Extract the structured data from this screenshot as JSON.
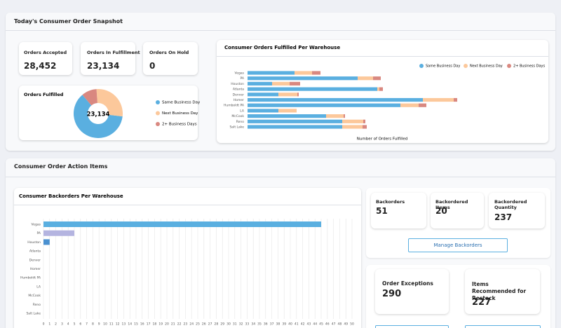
{
  "snapshot_title": "Today's Consumer Order Snapshot",
  "order_kpis": [
    {
      "label": "Orders Accepted",
      "value": "28,452"
    },
    {
      "label": "Orders In Fulfillment",
      "value": "23,134"
    },
    {
      "label": "Orders On Hold",
      "value": "0"
    }
  ],
  "chart_data": [
    {
      "type": "pie",
      "title": "Orders Fulfilled",
      "center_label": "23,134",
      "categories": [
        "Same Business Day",
        "Next Business Day",
        "2+ Business Days"
      ],
      "values": [
        62,
        28,
        10
      ],
      "colors": [
        "#5aafe0",
        "#fcc89b",
        "#d98880"
      ]
    },
    {
      "type": "stacked-bar",
      "title": "Consumer Orders Fulfilled Per Warehouse",
      "xlabel": "Number of Orders Fulfilled",
      "categories": [
        "Vegas",
        "PA",
        "Houston",
        "Atlanta",
        "Denver",
        "Homer",
        "Humboldt PA",
        "LA",
        "McCook",
        "Reno",
        "Salt Lake"
      ],
      "series": [
        {
          "name": "Same Business Day",
          "color": "#5aafe0",
          "values": [
            67,
            157,
            35,
            185,
            44,
            250,
            218,
            44,
            112,
            135,
            135
          ]
        },
        {
          "name": "Next Business Day",
          "color": "#fcc89b",
          "values": [
            25,
            22,
            25,
            3,
            27,
            44,
            26,
            26,
            25,
            30,
            29
          ]
        },
        {
          "name": "2+ Business Days",
          "color": "#d98880",
          "values": [
            12,
            11,
            15,
            5,
            2,
            5,
            11,
            0,
            2,
            3,
            6
          ]
        }
      ],
      "xlim": [
        0,
        310
      ],
      "legend": "top-right"
    },
    {
      "type": "bar",
      "title": "Consumer Backorders Per Warehouse",
      "categories": [
        "Vegas",
        "PA",
        "Houston",
        "Atlanta",
        "Denver",
        "Homer",
        "Humboldt PA",
        "LA",
        "McCook",
        "Reno",
        "Salt Lake"
      ],
      "values": [
        45,
        5,
        1,
        0,
        0,
        0,
        0,
        0,
        0,
        0,
        0
      ],
      "colors": [
        "#5aafe0",
        "#b4b4e0",
        "#4a90d0",
        "#5aafe0",
        "#5aafe0",
        "#5aafe0",
        "#5aafe0",
        "#5aafe0",
        "#5aafe0",
        "#5aafe0",
        "#5aafe0"
      ],
      "xlim": [
        0,
        50
      ],
      "xticks": [
        0,
        1,
        2,
        3,
        4,
        5,
        6,
        7,
        8,
        9,
        10,
        11,
        12,
        13,
        14,
        15,
        16,
        17,
        18,
        19,
        20,
        21,
        22,
        23,
        24,
        25,
        26,
        27,
        28,
        29,
        30,
        31,
        32,
        33,
        34,
        35,
        36,
        37,
        38,
        39,
        40,
        41,
        42,
        43,
        44,
        45,
        46,
        47,
        48,
        49,
        50
      ],
      "grid": true
    }
  ],
  "action_title": "Consumer Order Action Items",
  "backorder_kpis": [
    {
      "label": "Backorders",
      "value": "51"
    },
    {
      "label": "Backordered Items",
      "value": "20"
    },
    {
      "label": "Backordered Quantity",
      "value": "237"
    }
  ],
  "backorder_button": "Manage Backorders",
  "exception_kpis": [
    {
      "label": "Order Exceptions",
      "value": "290"
    },
    {
      "label": "Items Recommended for Restock",
      "value": "227"
    }
  ]
}
